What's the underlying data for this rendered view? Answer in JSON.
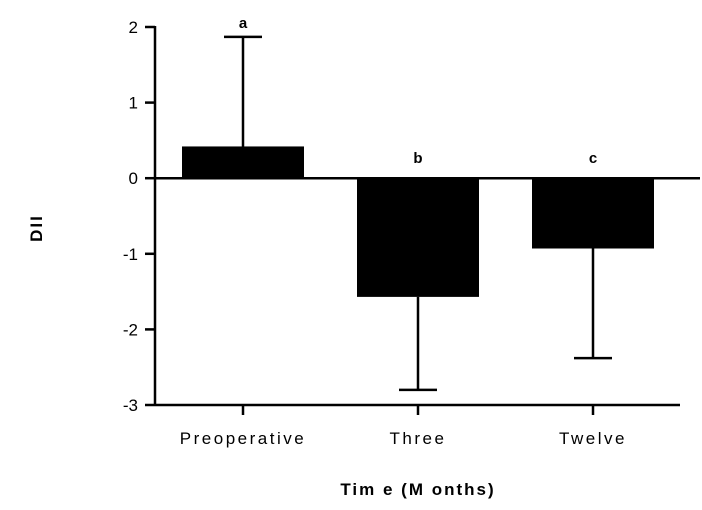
{
  "chart_data": {
    "type": "bar",
    "categories": [
      "Preoperative",
      "Three",
      "Twelve"
    ],
    "values": [
      0.42,
      -1.57,
      -0.93
    ],
    "error_bars": [
      1.87,
      -2.8,
      -2.38
    ],
    "annotations": [
      "a",
      "b",
      "c"
    ],
    "xlabel": "Tim e (M onths)",
    "ylabel": "DII",
    "ylim": [
      -3,
      2
    ],
    "yticks": [
      "-3",
      "-2",
      "-1",
      "0",
      "1",
      "2"
    ],
    "bar_color": "#000000",
    "grid": false
  }
}
